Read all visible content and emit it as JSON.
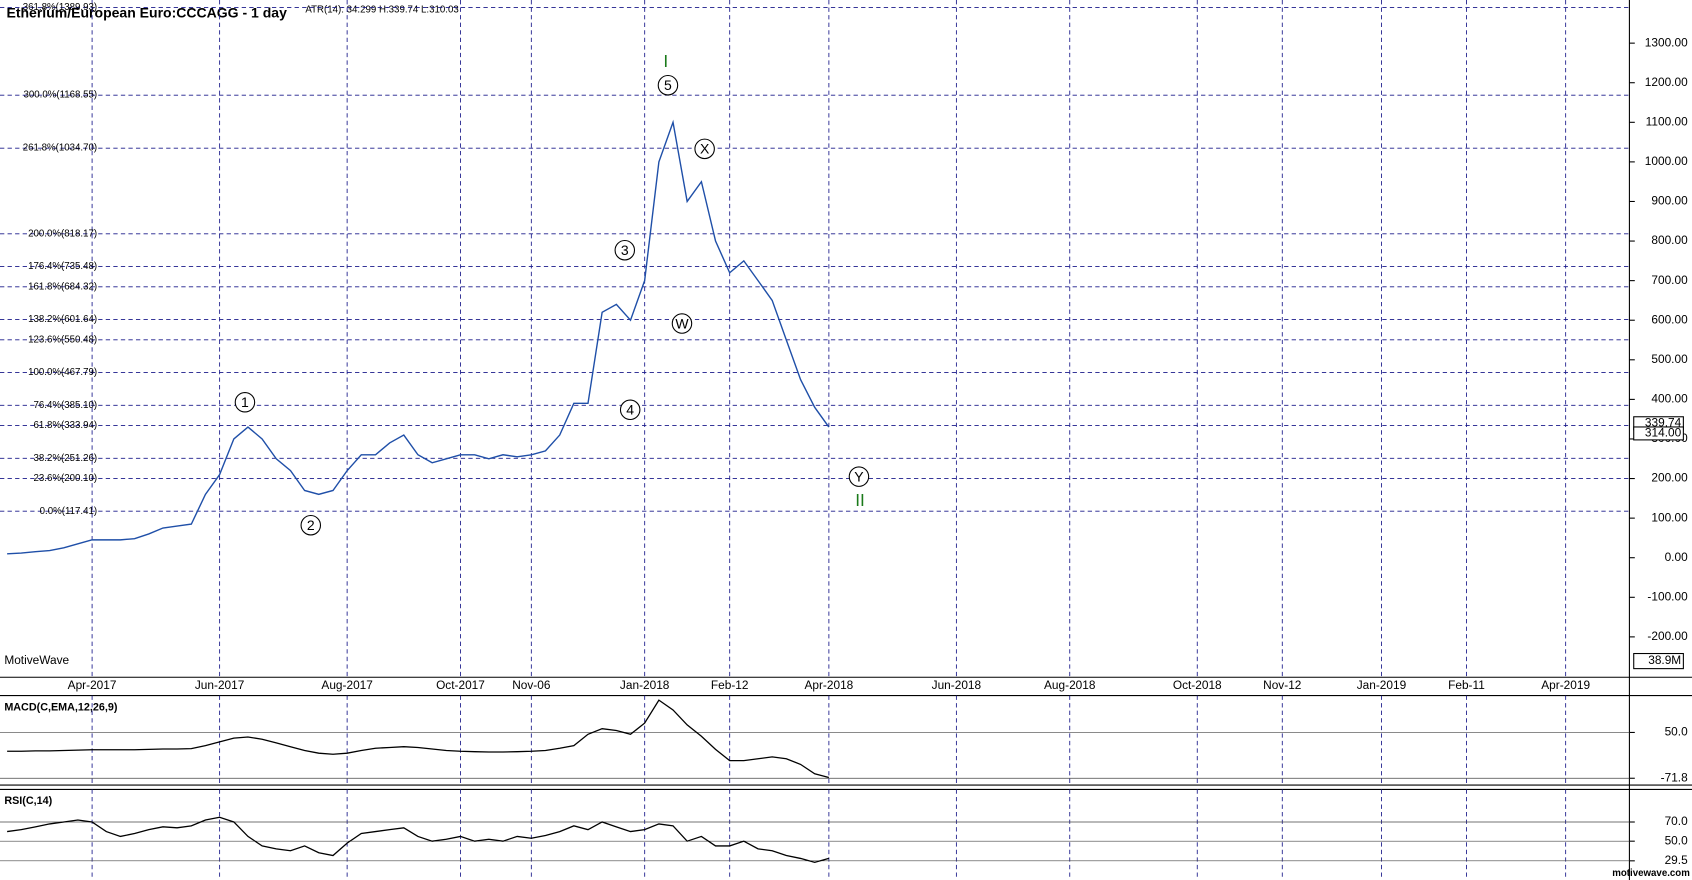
{
  "header": {
    "title": "Etherium/European Euro:CCCAGG - 1 day",
    "atr": "ATR(14): 34.299  H:339.74  L:310.03",
    "brand": "MotiveWave",
    "site": "motivewave.com",
    "volume_label": "38.9M"
  },
  "chart_data": [
    {
      "type": "line",
      "color": "#1f4fa8",
      "categories": [
        null,
        null,
        null,
        null,
        null,
        null,
        "Apr-2017",
        null,
        null,
        null,
        null,
        null,
        null,
        null,
        null,
        "Jun-2017",
        null,
        null,
        null,
        null,
        null,
        null,
        null,
        null,
        "Aug-2017",
        null,
        null,
        null,
        null,
        null,
        null,
        null,
        "Oct-2017",
        null,
        null,
        null,
        null,
        "Nov-06",
        null,
        null,
        null,
        null,
        null,
        null,
        null,
        "Jan-2018",
        null,
        null,
        null,
        null,
        null,
        "Feb-12",
        null,
        null,
        null,
        null,
        null,
        null,
        "Apr-2018",
        null,
        null,
        null,
        null,
        null,
        null,
        null,
        null,
        "Jun-2018",
        null,
        null,
        null,
        null,
        null,
        null,
        null,
        "Aug-2018",
        null,
        null,
        null,
        null,
        null,
        null,
        null,
        null,
        "Oct-2018",
        null,
        null,
        null,
        null,
        null,
        "Nov-12",
        null,
        null,
        null,
        null,
        null,
        null,
        "Jan-2019",
        null,
        null,
        null,
        null,
        null,
        "Feb-11",
        null,
        null,
        null,
        null,
        null,
        null,
        "Apr-2019",
        null,
        null,
        null,
        null
      ],
      "series": [
        {
          "color": "#1f4fa8",
          "values": [
            10,
            12,
            15,
            18,
            25,
            35,
            45,
            45,
            45,
            48,
            60,
            75,
            80,
            85,
            160,
            210,
            300,
            330,
            300,
            250,
            220,
            170,
            160,
            170,
            220,
            260,
            260,
            290,
            310,
            260,
            240,
            250,
            260,
            260,
            250,
            260,
            255,
            260,
            270,
            310,
            390,
            390,
            620,
            640,
            600,
            700,
            1000,
            1100,
            900,
            950,
            800,
            720,
            750,
            700,
            650,
            550,
            450,
            380,
            330,
            null,
            null,
            null,
            null,
            null,
            null,
            null,
            null,
            null,
            null,
            null,
            null,
            null,
            null,
            null,
            null,
            null,
            null,
            null,
            null,
            null,
            null,
            null,
            null,
            null,
            null,
            null,
            null,
            null,
            null,
            null,
            null,
            null,
            null,
            null,
            null,
            null,
            null,
            null,
            null,
            null,
            null,
            null,
            null,
            null,
            null,
            null,
            null,
            null,
            null,
            null,
            null,
            null,
            null,
            null,
            null
          ]
        }
      ],
      "ylim": [
        -302,
        1409
      ],
      "yticks": [
        {
          "value": -200,
          "label": "-200.00"
        },
        {
          "value": -100,
          "label": "-100.00"
        },
        {
          "value": 0,
          "label": "0.00"
        },
        {
          "value": 100,
          "label": "100.00"
        },
        {
          "value": 200,
          "label": "200.00"
        },
        {
          "value": 300,
          "label": "300.00"
        },
        {
          "value": 400,
          "label": "400.00"
        },
        {
          "value": 500,
          "label": "500.00"
        },
        {
          "value": 600,
          "label": "600.00"
        },
        {
          "value": 700,
          "label": "700.00"
        },
        {
          "value": 800,
          "label": "800.00"
        },
        {
          "value": 900,
          "label": "900.00"
        },
        {
          "value": 1000,
          "label": "1000.00"
        },
        {
          "value": 1100,
          "label": "1100.00"
        },
        {
          "value": 1200,
          "label": "1200.00"
        },
        {
          "value": 1300,
          "label": "1300.00"
        }
      ],
      "fib_levels": [
        {
          "value": 1389.93,
          "label": "361.8%(1389.93)"
        },
        {
          "value": 1168.55,
          "label": "300.0%(1168.55)"
        },
        {
          "value": 1034.7,
          "label": "261.8%(1034.70)"
        },
        {
          "value": 818.17,
          "label": "200.0%(818.17)"
        },
        {
          "value": 735.48,
          "label": "176.4%(735.48)"
        },
        {
          "value": 684.32,
          "label": "161.8%(684.32)"
        },
        {
          "value": 601.64,
          "label": "138.2%(601.64)"
        },
        {
          "value": 550.48,
          "label": "123.6%(550.48)"
        },
        {
          "value": 467.79,
          "label": "100.0%(467.79)"
        },
        {
          "value": 385.1,
          "label": "76.4%(385.10)"
        },
        {
          "value": 333.94,
          "label": "61.8%(333.94)"
        },
        {
          "value": 251.26,
          "label": "38.2%(251.26)"
        },
        {
          "value": 200.1,
          "label": "23.6%(200.10)"
        },
        {
          "value": 117.41,
          "label": "0.0%(117.41)"
        }
      ],
      "price_labels": [
        339.74,
        {
          "value": 314,
          "label": "314.00"
        }
      ],
      "annotations": [
        "I",
        "5",
        "X",
        "3",
        "W",
        "4",
        "1",
        "2",
        "Y",
        "II"
      ]
    },
    {
      "type": "line",
      "title": "MACD(C,EMA,12,26,9)",
      "color": "#000000",
      "values": [
        0,
        0,
        1,
        1,
        2,
        3,
        4,
        4,
        4,
        4,
        5,
        6,
        6,
        7,
        15,
        25,
        35,
        38,
        32,
        22,
        12,
        2,
        -5,
        -8,
        -5,
        2,
        8,
        10,
        12,
        10,
        6,
        2,
        0,
        -1,
        -2,
        -2,
        -1,
        0,
        2,
        8,
        15,
        45,
        60,
        55,
        45,
        75,
        136,
        110,
        70,
        40,
        5,
        -25,
        -25,
        -20,
        -15,
        -20,
        -35,
        -60,
        -70,
        null,
        null,
        null,
        null,
        null,
        null,
        null,
        null,
        null,
        null,
        null,
        null,
        null,
        null,
        null,
        null,
        null,
        null,
        null,
        null,
        null,
        null,
        null,
        null,
        null,
        null,
        null,
        null,
        null,
        null,
        null,
        null,
        null,
        null,
        null,
        null,
        null,
        null,
        null,
        null,
        null,
        null,
        null,
        null,
        null,
        null,
        null,
        null,
        null,
        null,
        null,
        null,
        null,
        null,
        null,
        null
      ],
      "ylim": [
        -90,
        148
      ],
      "yticks": [
        {
          "value": 50,
          "label": "50.0"
        },
        {
          "value": -71.8,
          "label": "-71.8"
        }
      ]
    },
    {
      "type": "line",
      "title": "RSI(C,14)",
      "color": "#000000",
      "values": [
        60,
        62,
        65,
        68,
        70,
        72,
        70,
        60,
        55,
        58,
        62,
        65,
        64,
        66,
        72,
        75,
        70,
        55,
        45,
        42,
        40,
        45,
        38,
        35,
        48,
        58,
        60,
        62,
        64,
        55,
        50,
        52,
        55,
        50,
        52,
        50,
        55,
        53,
        56,
        60,
        66,
        62,
        70,
        65,
        60,
        62,
        68,
        66,
        50,
        55,
        45,
        45,
        50,
        42,
        40,
        35,
        32,
        28,
        32,
        null,
        null,
        null,
        null,
        null,
        null,
        null,
        null,
        null,
        null,
        null,
        null,
        null,
        null,
        null,
        null,
        null,
        null,
        null,
        null,
        null,
        null,
        null,
        null,
        null,
        null,
        null,
        null,
        null,
        null,
        null,
        null,
        null,
        null,
        null,
        null,
        null,
        null,
        null,
        null,
        null,
        null,
        null,
        null,
        null,
        null,
        null,
        null,
        null,
        null,
        null,
        null,
        null,
        null,
        null,
        null
      ],
      "ylim": [
        9.5,
        104
      ],
      "yticks": [
        {
          "value": 70,
          "label": "70.0"
        },
        {
          "value": 50,
          "label": "50.0"
        },
        {
          "value": 29.5,
          "label": "29.5"
        }
      ]
    }
  ]
}
